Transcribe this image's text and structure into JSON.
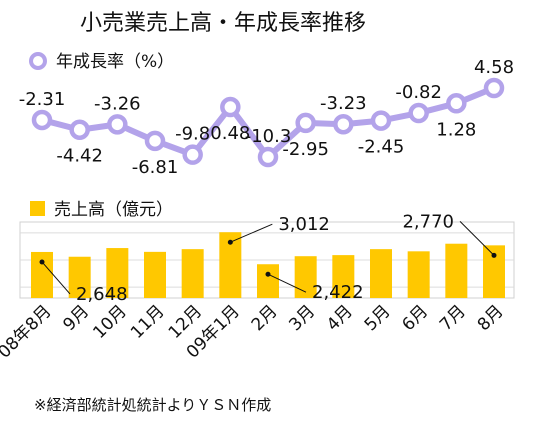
{
  "chart_data": {
    "type": "line+bar",
    "title": "小売業売上高・年成長率推移",
    "categories": [
      "08年8月",
      "9月",
      "10月",
      "11月",
      "12月",
      "09年1月",
      "2月",
      "3月",
      "4月",
      "5月",
      "6月",
      "7月",
      "8月"
    ],
    "series": [
      {
        "name": "年成長率（%）",
        "type": "line",
        "color": "#b3a3ea",
        "values": [
          -2.31,
          -4.42,
          -3.26,
          -6.81,
          -9.8,
          0.48,
          -10.3,
          -2.95,
          -3.23,
          -2.45,
          -0.82,
          1.28,
          4.58
        ],
        "labels": [
          "-2.31",
          "-4.42",
          "-3.26",
          "-6.81",
          "-9.8",
          "0.48",
          "-10.3",
          "-2.95",
          "-3.23",
          "-2.45",
          "-0.82",
          "1.28",
          "4.58"
        ]
      },
      {
        "name": "売上高（億元）",
        "type": "bar",
        "color": "#ffc800",
        "values": [
          2648,
          2560,
          2720,
          2650,
          2700,
          3012,
          2422,
          2570,
          2590,
          2700,
          2660,
          2800,
          2770
        ],
        "callouts": [
          {
            "index": 0,
            "text": "2,648"
          },
          {
            "index": 5,
            "text": "3,012"
          },
          {
            "index": 6,
            "text": "2,422"
          },
          {
            "index": 12,
            "text": "2,770"
          }
        ]
      }
    ],
    "grid": true
  },
  "footnote": "※経済部統計処統計よりＹＳＮ作成"
}
